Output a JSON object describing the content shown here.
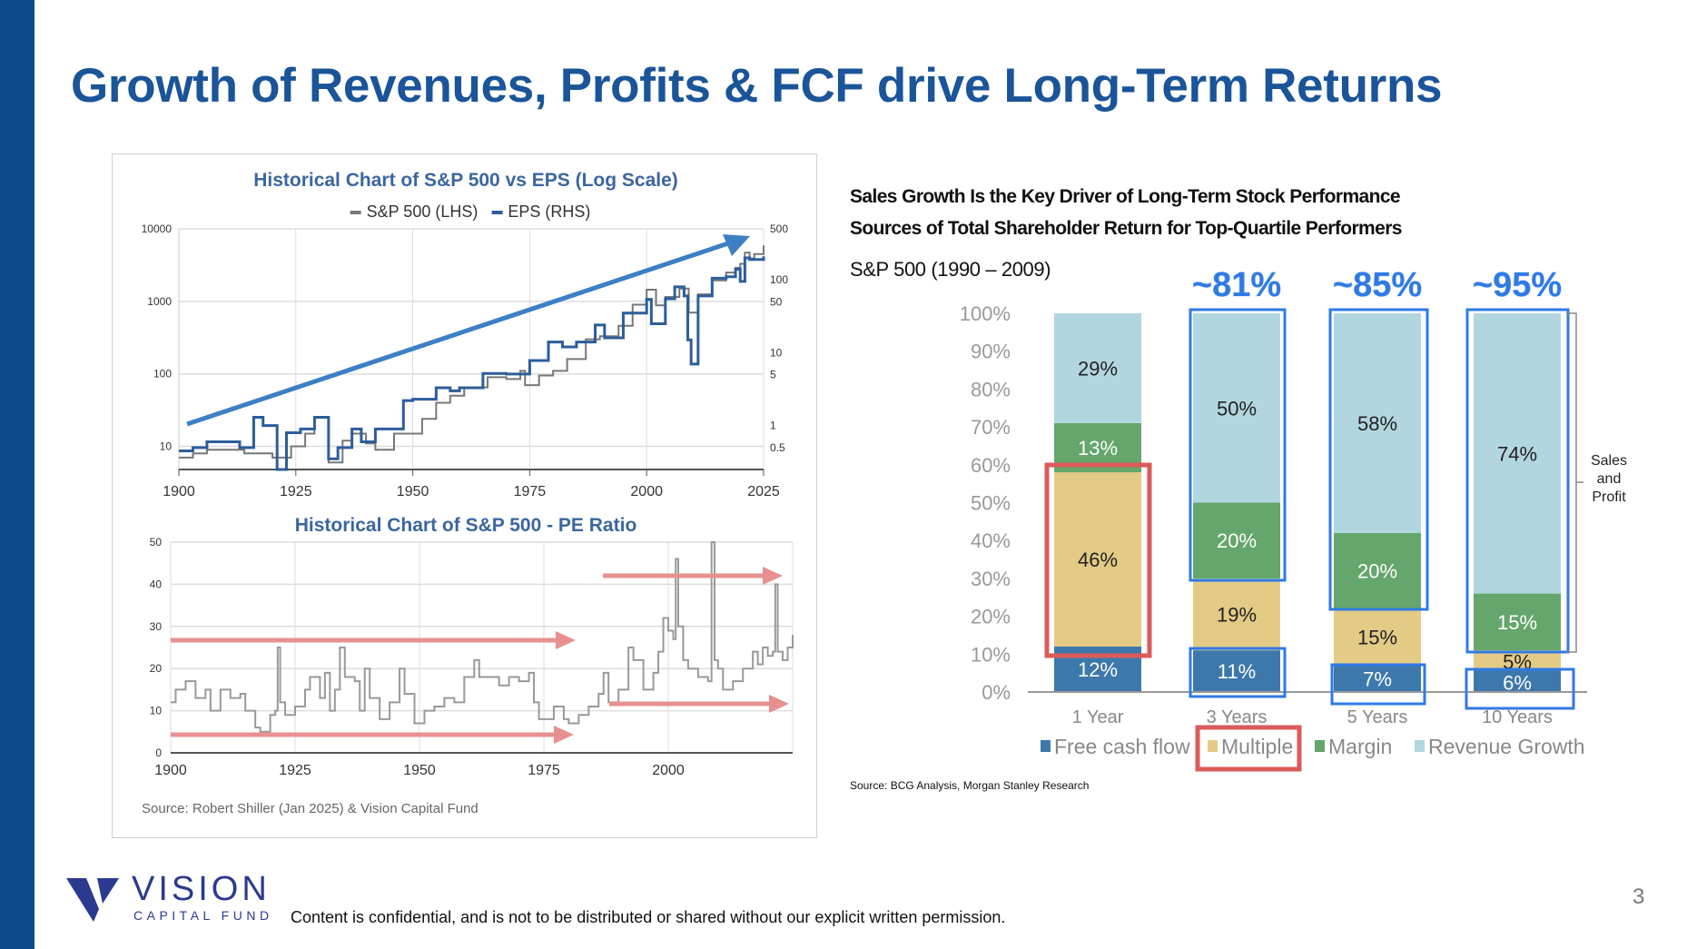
{
  "title": "Growth of Revenues, Profits & FCF drive Long-Term Returns",
  "left_panel": {
    "source": "Source: Robert Shiller (Jan 2025) & Vision Capital Fund"
  },
  "right_panel": {
    "heading1": "Sales Growth Is the Key Driver of Long-Term Stock Performance",
    "heading2": "Sources of Total Shareholder Return for Top-Quartile Performers",
    "subtitle": "S&P 500 (1990 – 2009)",
    "source": "Source: BCG Analysis, Morgan Stanley Research"
  },
  "footer": {
    "disclaimer": "Content is confidential, and is not to be distributed or shared without our explicit written permission.",
    "page_number": "3",
    "logo_text": "VISION",
    "logo_subtext": "CAPITAL FUND"
  },
  "colors": {
    "brand": "#1a5499",
    "sp500": "#777777",
    "eps": "#2d5d9a",
    "trend_arrow": "#3d7fc4",
    "pe_arrow": "#e89090",
    "fcf": "#3d78ac",
    "multiple": "#e3cb86",
    "margin": "#64a66b",
    "revenue": "#b2d6e0",
    "highlight_blue": "#2f7ae5",
    "highlight_red": "#dd5a5a"
  },
  "chart_data": [
    {
      "type": "line",
      "title": "Historical Chart of S&P 500 vs EPS (Log Scale)",
      "legend": [
        "S&P 500 (LHS)",
        "EPS (RHS)"
      ],
      "legend_placement": "top",
      "x_ticks": [
        "1900",
        "1925",
        "1950",
        "1975",
        "2000",
        "2025"
      ],
      "xlim": [
        1900,
        2025
      ],
      "y_left": {
        "scale": "log",
        "ylim": [
          4.8,
          10000
        ],
        "ticks": [
          "10",
          "100",
          "1000",
          "10000"
        ]
      },
      "y_right": {
        "scale": "log",
        "ylim": [
          0.25,
          500
        ],
        "ticks": [
          "0.5",
          "1",
          "5",
          "10",
          "50",
          "100",
          "500"
        ]
      },
      "series": [
        {
          "name": "S&P 500 (LHS)",
          "axis": "left",
          "x": [
            1900,
            1903,
            1906,
            1910,
            1914,
            1917,
            1920,
            1924,
            1927,
            1929,
            1932,
            1935,
            1937,
            1940,
            1942,
            1946,
            1949,
            1952,
            1955,
            1958,
            1961,
            1966,
            1970,
            1973,
            1974,
            1977,
            1980,
            1983,
            1987,
            1990,
            1994,
            1997,
            2000,
            2002,
            2004,
            2007,
            2009,
            2011,
            2014,
            2017,
            2019,
            2020,
            2021,
            2022,
            2023,
            2025
          ],
          "values": [
            7,
            8,
            9,
            9,
            8,
            8,
            7,
            10,
            15,
            25,
            6,
            12,
            15,
            11,
            9,
            15,
            15,
            24,
            40,
            50,
            65,
            90,
            85,
            110,
            70,
            95,
            110,
            160,
            300,
            330,
            460,
            900,
            1450,
            880,
            1150,
            1500,
            700,
            1250,
            1950,
            2500,
            2900,
            3300,
            4700,
            3900,
            4500,
            5900
          ]
        },
        {
          "name": "EPS (RHS)",
          "axis": "right",
          "x": [
            1900,
            1903,
            1906,
            1910,
            1913,
            1916,
            1918,
            1921,
            1923,
            1926,
            1929,
            1932,
            1934,
            1937,
            1939,
            1942,
            1946,
            1948,
            1950,
            1955,
            1958,
            1960,
            1965,
            1970,
            1975,
            1979,
            1982,
            1985,
            1989,
            1991,
            1995,
            2000,
            2001,
            2004,
            2006,
            2008,
            2008.8,
            2009.5,
            2011,
            2014,
            2017,
            2019,
            2020,
            2021,
            2022,
            2025
          ],
          "values": [
            0.45,
            0.5,
            0.6,
            0.6,
            0.5,
            1.3,
            1.0,
            0.25,
            0.8,
            0.9,
            1.3,
            0.35,
            0.5,
            0.9,
            0.6,
            0.9,
            0.9,
            2.2,
            2.3,
            3.3,
            3.0,
            3.3,
            5.2,
            5.1,
            7.8,
            14,
            12,
            14,
            24,
            16,
            35,
            54,
            25,
            55,
            80,
            60,
            15,
            7,
            60,
            105,
            110,
            140,
            95,
            200,
            190,
            210
          ]
        }
      ],
      "annotation": "upward trend arrow"
    },
    {
      "type": "line",
      "title": "Historical Chart of S&P 500 - PE Ratio",
      "x_ticks": [
        "1900",
        "1925",
        "1950",
        "1975",
        "2000"
      ],
      "xlim": [
        1900,
        2025
      ],
      "ylim": [
        0,
        50
      ],
      "y_ticks": [
        "0",
        "10",
        "20",
        "30",
        "40",
        "50"
      ],
      "series": [
        {
          "name": "PE Ratio",
          "x": [
            1900,
            1901,
            1903,
            1905,
            1907,
            1908,
            1910,
            1912,
            1914,
            1915,
            1917,
            1918,
            1920,
            1921,
            1921.5,
            1922,
            1923,
            1925,
            1927,
            1928,
            1930,
            1931,
            1932,
            1933,
            1934,
            1935,
            1937,
            1938,
            1939,
            1940,
            1942,
            1944,
            1946,
            1947,
            1949,
            1951,
            1953,
            1955,
            1957,
            1959,
            1961,
            1962,
            1964,
            1966,
            1968,
            1970,
            1972,
            1973,
            1974,
            1975,
            1977,
            1979,
            1980,
            1982,
            1984,
            1986,
            1987,
            1988,
            1990,
            1992,
            1993,
            1995,
            1997,
            1998,
            1999,
            2000,
            2001,
            2001.5,
            2002,
            2003,
            2004,
            2006,
            2008,
            2008.7,
            2009.3,
            2010,
            2011,
            2013,
            2015,
            2017,
            2018,
            2019,
            2020,
            2021,
            2021.5,
            2022,
            2023,
            2024,
            2025
          ],
          "values": [
            12,
            15,
            17,
            13,
            15,
            10,
            15,
            13,
            14,
            10,
            6,
            5,
            9,
            10,
            25,
            12,
            9,
            11,
            15,
            18,
            13,
            19,
            10,
            15,
            25,
            18,
            17,
            10,
            20,
            13,
            8,
            12,
            20,
            14,
            7,
            10,
            11,
            13,
            12,
            18,
            22,
            18,
            18,
            16,
            18,
            17,
            19,
            12,
            8,
            8,
            11,
            8,
            7,
            9,
            11,
            14,
            19,
            12,
            15,
            25,
            22,
            15,
            19,
            24,
            32,
            29,
            27,
            46,
            30,
            22,
            20,
            18,
            17,
            50,
            22,
            20,
            15,
            17,
            20,
            24,
            21,
            25,
            23,
            24,
            40,
            24,
            22,
            25,
            28
          ]
        }
      ],
      "annotations": [
        "flat range arrows 1900-1980 at ~27 and ~4.5",
        "flat range arrows 1988-2025 at ~42 and ~12"
      ]
    },
    {
      "type": "bar",
      "stacked": true,
      "title": "Sources of Total Shareholder Return for Top-Quartile Performers",
      "categories": [
        "1 Year",
        "3 Years",
        "5 Years",
        "10 Years"
      ],
      "ylim": [
        0,
        100
      ],
      "y_ticks": [
        "0%",
        "10%",
        "20%",
        "30%",
        "40%",
        "50%",
        "60%",
        "70%",
        "80%",
        "90%",
        "100%"
      ],
      "series": [
        {
          "name": "Free cash flow",
          "values": [
            12,
            11,
            7,
            6
          ]
        },
        {
          "name": "Multiple",
          "values": [
            46,
            19,
            15,
            5
          ]
        },
        {
          "name": "Margin",
          "values": [
            13,
            20,
            20,
            15
          ]
        },
        {
          "name": "Revenue Growth",
          "values": [
            29,
            50,
            58,
            74
          ]
        }
      ],
      "data_labels": [
        [
          "12%",
          "46%",
          "13%",
          "29%"
        ],
        [
          "11%",
          "19%",
          "20%",
          "50%"
        ],
        [
          "7%",
          "15%",
          "20%",
          "58%"
        ],
        [
          "6%",
          "5%",
          "15%",
          "74%"
        ]
      ],
      "callouts": [
        "",
        "~81%",
        "~85%",
        "~95%"
      ],
      "bracket_label": [
        "Sales",
        "and",
        "Profit"
      ],
      "legend_placement": "bottom"
    }
  ]
}
